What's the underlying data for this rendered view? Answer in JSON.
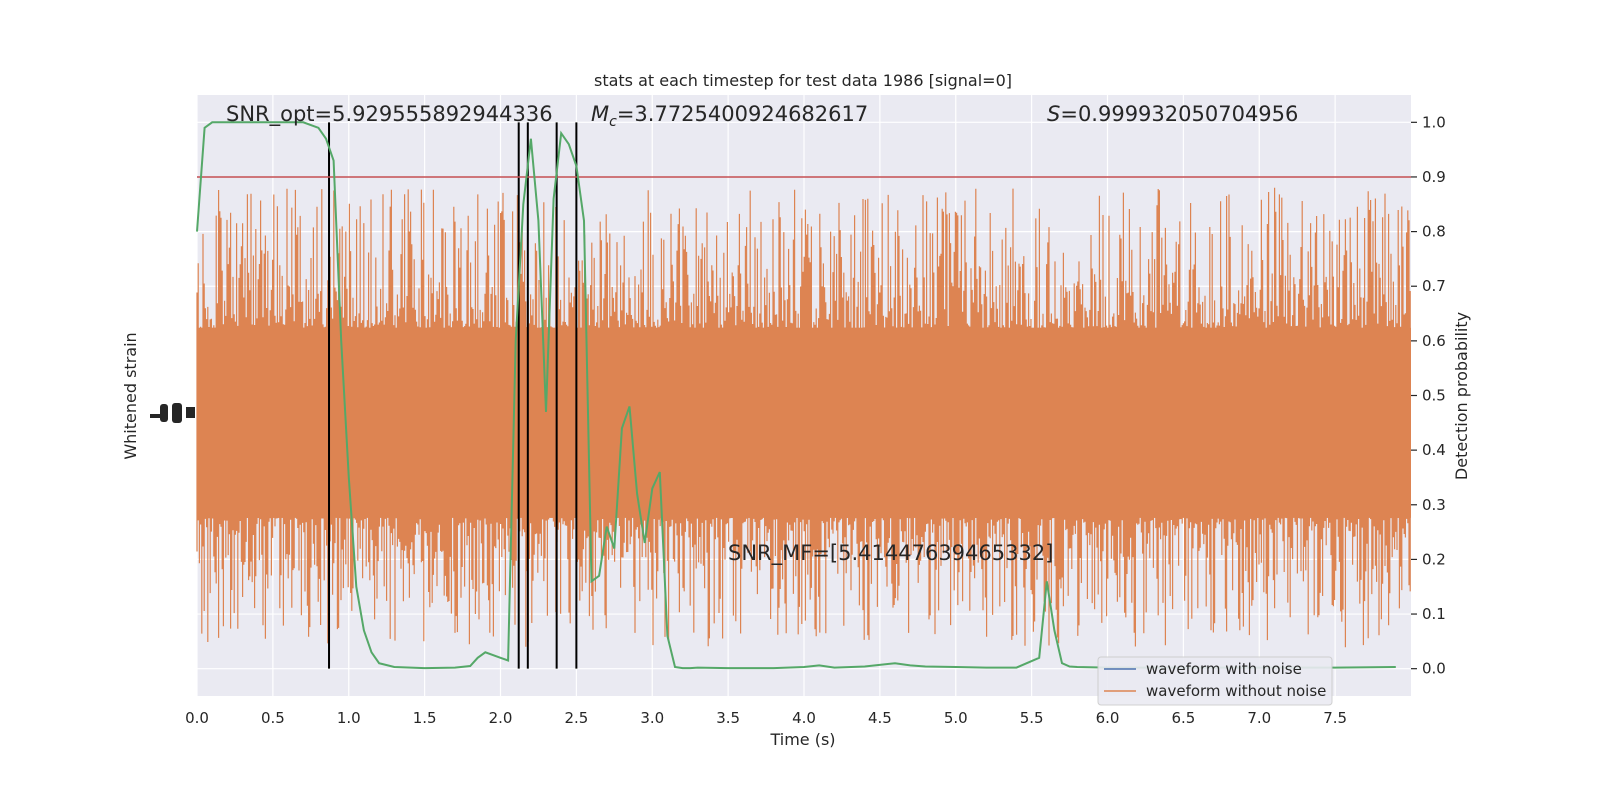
{
  "chart_data": {
    "type": "line",
    "title": "stats at each timestep for test data 1986 [signal=0]",
    "xlabel": "Time (s)",
    "ylabel_left": "Whitened strain",
    "ylabel_right": "Detection probability",
    "xlim": [
      0,
      8
    ],
    "ylim_right": [
      -0.05,
      1.05
    ],
    "x_ticks": [
      "0.0",
      "0.5",
      "1.0",
      "1.5",
      "2.0",
      "2.5",
      "3.0",
      "3.5",
      "4.0",
      "4.5",
      "5.0",
      "5.5",
      "6.0",
      "6.5",
      "7.0",
      "7.5"
    ],
    "x_tick_values": [
      0,
      0.5,
      1,
      1.5,
      2,
      2.5,
      3,
      3.5,
      4,
      4.5,
      5,
      5.5,
      6,
      6.5,
      7,
      7.5
    ],
    "y_ticks_right": [
      "0.0",
      "0.1",
      "0.2",
      "0.3",
      "0.4",
      "0.5",
      "0.6",
      "0.7",
      "0.8",
      "0.9",
      "1.0"
    ],
    "y_tick_values_right": [
      0,
      0.1,
      0.2,
      0.3,
      0.4,
      0.5,
      0.6,
      0.7,
      0.8,
      0.9,
      1.0
    ],
    "grid": true,
    "legend_position": "lower right",
    "annotations": {
      "snr_opt": "SNR_opt=5.929555892944336",
      "mc_symbol": "M",
      "mc_subscript": "c",
      "mc_value": "=3.7725400924682617",
      "s_symbol": "S",
      "s_value": "=0.999932050704956",
      "snr_mf": "SNR_MF=[5.41447639465332]"
    },
    "threshold": 0.9,
    "vlines_x": [
      0.87,
      2.12,
      2.18,
      2.37,
      2.5
    ],
    "series": [
      {
        "name": "waveform with noise",
        "color": "#4c72b0",
        "axis": "left",
        "values": []
      },
      {
        "name": "waveform without noise",
        "color": "#dd8452",
        "axis": "left",
        "representation": "dense noise band",
        "band_center": 0.45
      },
      {
        "color": "#55a868",
        "axis": "right",
        "x": [
          0.0,
          0.05,
          0.1,
          0.2,
          0.3,
          0.5,
          0.7,
          0.8,
          0.85,
          0.9,
          0.95,
          1.0,
          1.05,
          1.1,
          1.15,
          1.2,
          1.3,
          1.5,
          1.7,
          1.8,
          1.85,
          1.9,
          2.0,
          2.05,
          2.1,
          2.15,
          2.2,
          2.25,
          2.3,
          2.35,
          2.4,
          2.45,
          2.5,
          2.55,
          2.6,
          2.65,
          2.7,
          2.75,
          2.8,
          2.85,
          2.9,
          2.95,
          3.0,
          3.05,
          3.1,
          3.15,
          3.2,
          3.25,
          3.3,
          3.5,
          3.8,
          4.0,
          4.1,
          4.2,
          4.4,
          4.6,
          4.7,
          4.8,
          5.0,
          5.2,
          5.4,
          5.55,
          5.6,
          5.65,
          5.7,
          5.75,
          5.8,
          6.0,
          6.5,
          7.0,
          7.5,
          7.9
        ],
        "values": [
          0.8,
          0.99,
          1.0,
          1.0,
          1.0,
          1.0,
          1.0,
          0.99,
          0.97,
          0.93,
          0.6,
          0.35,
          0.15,
          0.07,
          0.03,
          0.01,
          0.003,
          0.001,
          0.002,
          0.005,
          0.02,
          0.03,
          0.02,
          0.015,
          0.6,
          0.85,
          0.97,
          0.82,
          0.47,
          0.86,
          0.98,
          0.96,
          0.92,
          0.82,
          0.16,
          0.17,
          0.26,
          0.22,
          0.44,
          0.48,
          0.32,
          0.23,
          0.33,
          0.36,
          0.06,
          0.003,
          0.001,
          0.001,
          0.002,
          0.001,
          0.001,
          0.003,
          0.006,
          0.002,
          0.004,
          0.01,
          0.006,
          0.004,
          0.003,
          0.002,
          0.002,
          0.02,
          0.16,
          0.07,
          0.01,
          0.004,
          0.003,
          0.002,
          0.002,
          0.002,
          0.002,
          0.003
        ]
      }
    ]
  }
}
